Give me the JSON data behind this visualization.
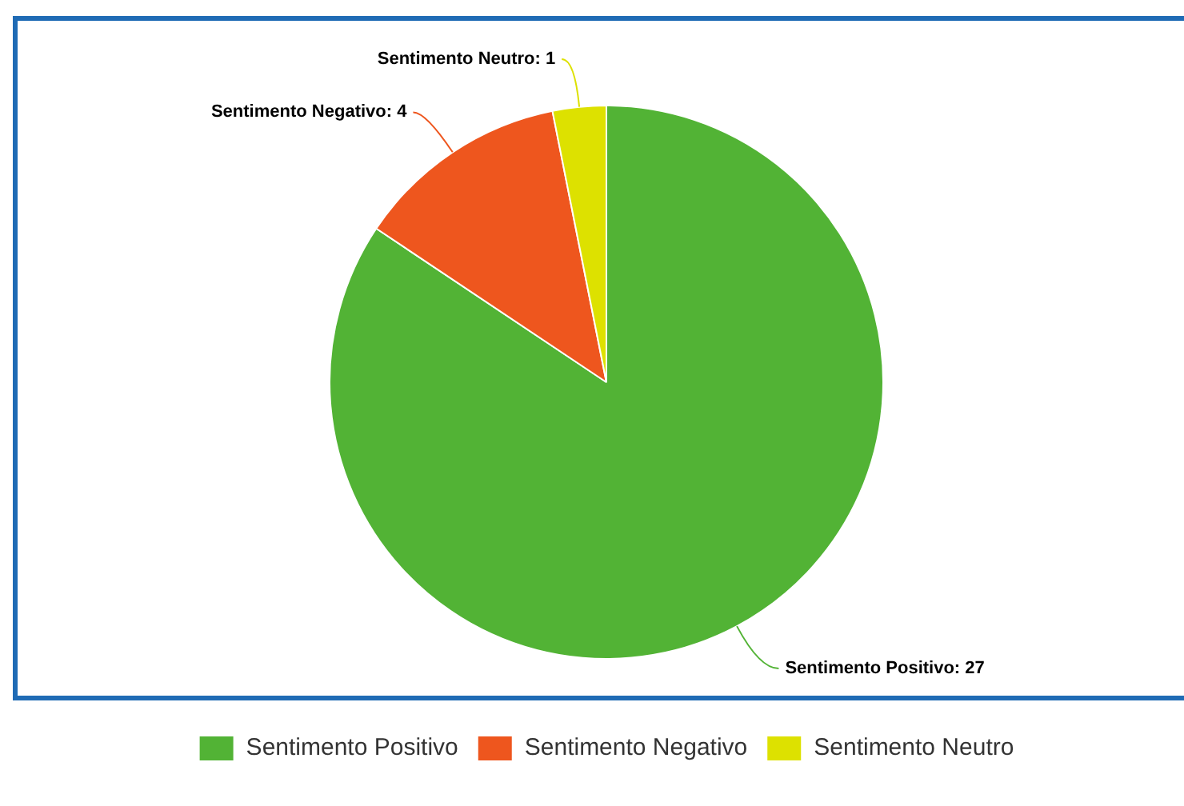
{
  "chart_data": {
    "type": "pie",
    "categories": [
      "Sentimento Positivo",
      "Sentimento Negativo",
      "Sentimento Neutro"
    ],
    "values": [
      27,
      4,
      1
    ],
    "colors": [
      "#52b335",
      "#ee561e",
      "#dde100"
    ],
    "value_labels": [
      "Sentimento Positivo: 27",
      "Sentimento Negativo: 4",
      "Sentimento Neutro: 1"
    ],
    "legend": "bottom"
  }
}
